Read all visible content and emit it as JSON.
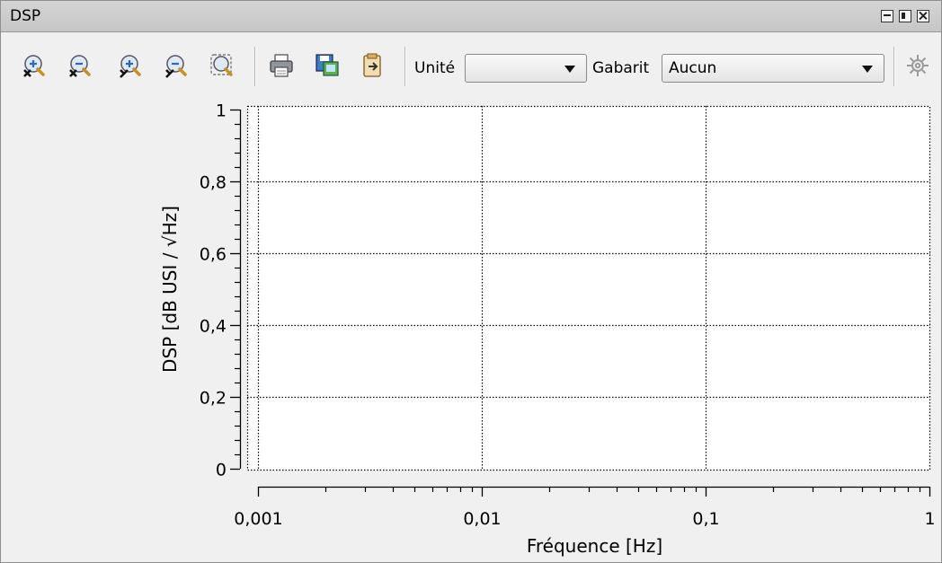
{
  "window": {
    "title": "DSP"
  },
  "toolbar": {
    "buttons": [
      {
        "name": "zoom-x-in-icon"
      },
      {
        "name": "zoom-x-out-icon"
      },
      {
        "name": "zoom-y-in-icon"
      },
      {
        "name": "zoom-y-out-icon"
      },
      {
        "name": "zoom-fit-icon"
      },
      {
        "name": "print-icon"
      },
      {
        "name": "save-image-icon"
      },
      {
        "name": "export-icon"
      }
    ],
    "unit_label": "Unité",
    "unit_value": "",
    "gabarit_label": "Gabarit",
    "gabarit_value": "Aucun",
    "settings_icon": "gear-icon"
  },
  "chart_data": {
    "type": "line",
    "title": "",
    "xlabel": "Fréquence [Hz]",
    "ylabel": "DSP [dB USI / √Hz]",
    "xscale": "log",
    "xlim": [
      0.001,
      1
    ],
    "ylim": [
      0,
      1
    ],
    "x_ticks": [
      "0,001",
      "0,01",
      "0,1",
      "1"
    ],
    "y_ticks": [
      "0",
      "0,2",
      "0,4",
      "0,6",
      "0,8",
      "1"
    ],
    "grid": true,
    "grid_style": "dotted",
    "series": []
  }
}
